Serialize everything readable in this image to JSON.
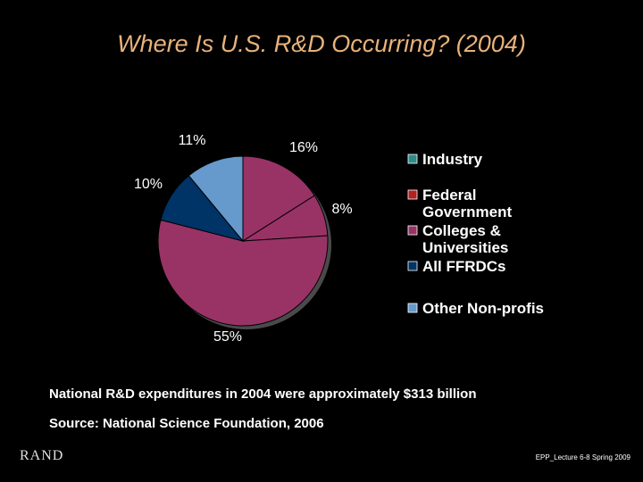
{
  "slide": {
    "title": "Where Is U.S. R&D Occurring? (2004)",
    "note": "National R&D expenditures in 2004 were  approximately $313 billion",
    "source": "Source: National Science Foundation, 2006",
    "logo": "RAND",
    "footer": "EPP_Lecture 6-8  Spring 2009"
  },
  "chart_data": {
    "type": "pie",
    "title": "",
    "legend_position": "right",
    "slices": [
      {
        "name": "Industry",
        "legend_lines": [
          "Industry"
        ],
        "value": 55,
        "label": "55%",
        "color": "#993366"
      },
      {
        "name": "Federal Government",
        "legend_lines": [
          "Federal",
          "Government"
        ],
        "value": 10,
        "label": "10%",
        "color": "#003366"
      },
      {
        "name": "Colleges & Universities",
        "legend_lines": [
          "Colleges &",
          "Universities"
        ],
        "value": 11,
        "label": "11%",
        "color": "#6699cc"
      },
      {
        "name": "All FFRDCs",
        "legend_lines": [
          "All FFRDCs"
        ],
        "value": 16,
        "label": "16%",
        "color": "#993366"
      },
      {
        "name": "Other Non-profis",
        "legend_lines": [
          "Other Non-profis"
        ],
        "value": 8,
        "label": "8%",
        "color": "#993366"
      }
    ],
    "legend_swatch_colors": [
      "#2e8b8b",
      "#b22222",
      "#993366",
      "#003366",
      "#6699cc"
    ]
  }
}
